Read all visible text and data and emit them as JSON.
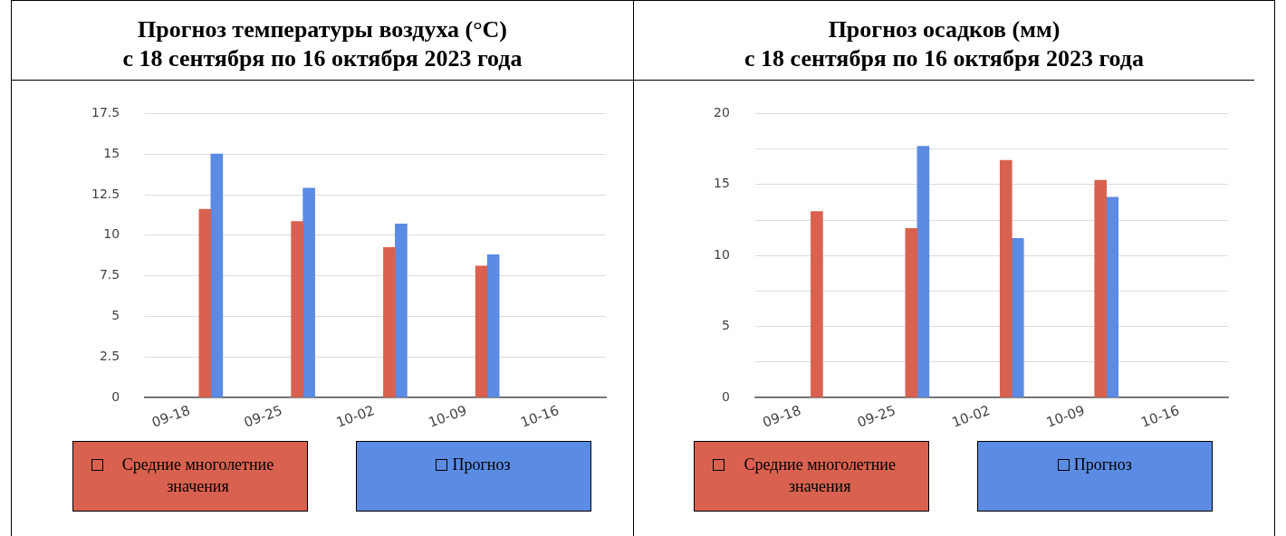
{
  "chart_data": [
    {
      "type": "bar",
      "title": "Прогноз температуры воздуха (°C)",
      "subtitle": "с 18 сентября по 16 октября 2023 года",
      "x": [
        "--09-21",
        "--09-28",
        "--10-05",
        "--10-12"
      ],
      "xlim": [
        "--09-16",
        "--10-21"
      ],
      "xticks": [
        {
          "value": "--09-18",
          "label": "09-18"
        },
        {
          "value": "--09-25",
          "label": "09-25"
        },
        {
          "value": "--10-02",
          "label": "10-02"
        },
        {
          "value": "--10-09",
          "label": "10-09"
        },
        {
          "value": "--10-16",
          "label": "10-16"
        }
      ],
      "ylim": [
        0,
        17.5
      ],
      "yticks": [
        0,
        2.5,
        5,
        7.5,
        10,
        12.5,
        15,
        17.5
      ],
      "grid": "y",
      "legend": "bottom",
      "series": [
        {
          "name": "Средние многолетние значения",
          "color": "#d9614f",
          "values": [
            11.6,
            10.85,
            9.25,
            8.1
          ]
        },
        {
          "name": "Прогноз",
          "color": "#5b8be3",
          "values": [
            15.0,
            12.9,
            10.7,
            8.8
          ]
        }
      ]
    },
    {
      "type": "bar",
      "title": "Прогноз осадков (мм)",
      "subtitle": "с 18 сентября по 16 октября 2023 года",
      "x": [
        "--09-21",
        "--09-28",
        "--10-05",
        "--10-12"
      ],
      "xlim": [
        "--09-16",
        "--10-21"
      ],
      "xticks": [
        {
          "value": "--09-18",
          "label": "09-18"
        },
        {
          "value": "--09-25",
          "label": "09-25"
        },
        {
          "value": "--10-02",
          "label": "10-02"
        },
        {
          "value": "--10-09",
          "label": "10-09"
        },
        {
          "value": "--10-16",
          "label": "10-16"
        }
      ],
      "ylim": [
        0,
        20
      ],
      "yticks": [
        0,
        {
          "value": 2.5,
          "label": null
        },
        5,
        {
          "value": 7.5,
          "label": null
        },
        10,
        {
          "value": 12.5,
          "label": null
        },
        15,
        {
          "value": 17.5,
          "label": null
        },
        20
      ],
      "grid": "y",
      "legend": "bottom",
      "series": [
        {
          "name": "Средние многолетние значения",
          "color": "#d9614f",
          "values": [
            13.1,
            11.9,
            16.7,
            15.3
          ]
        },
        {
          "name": "Прогноз",
          "color": "#5b8be3",
          "values": [
            null,
            17.7,
            11.2,
            14.1
          ]
        }
      ]
    }
  ]
}
